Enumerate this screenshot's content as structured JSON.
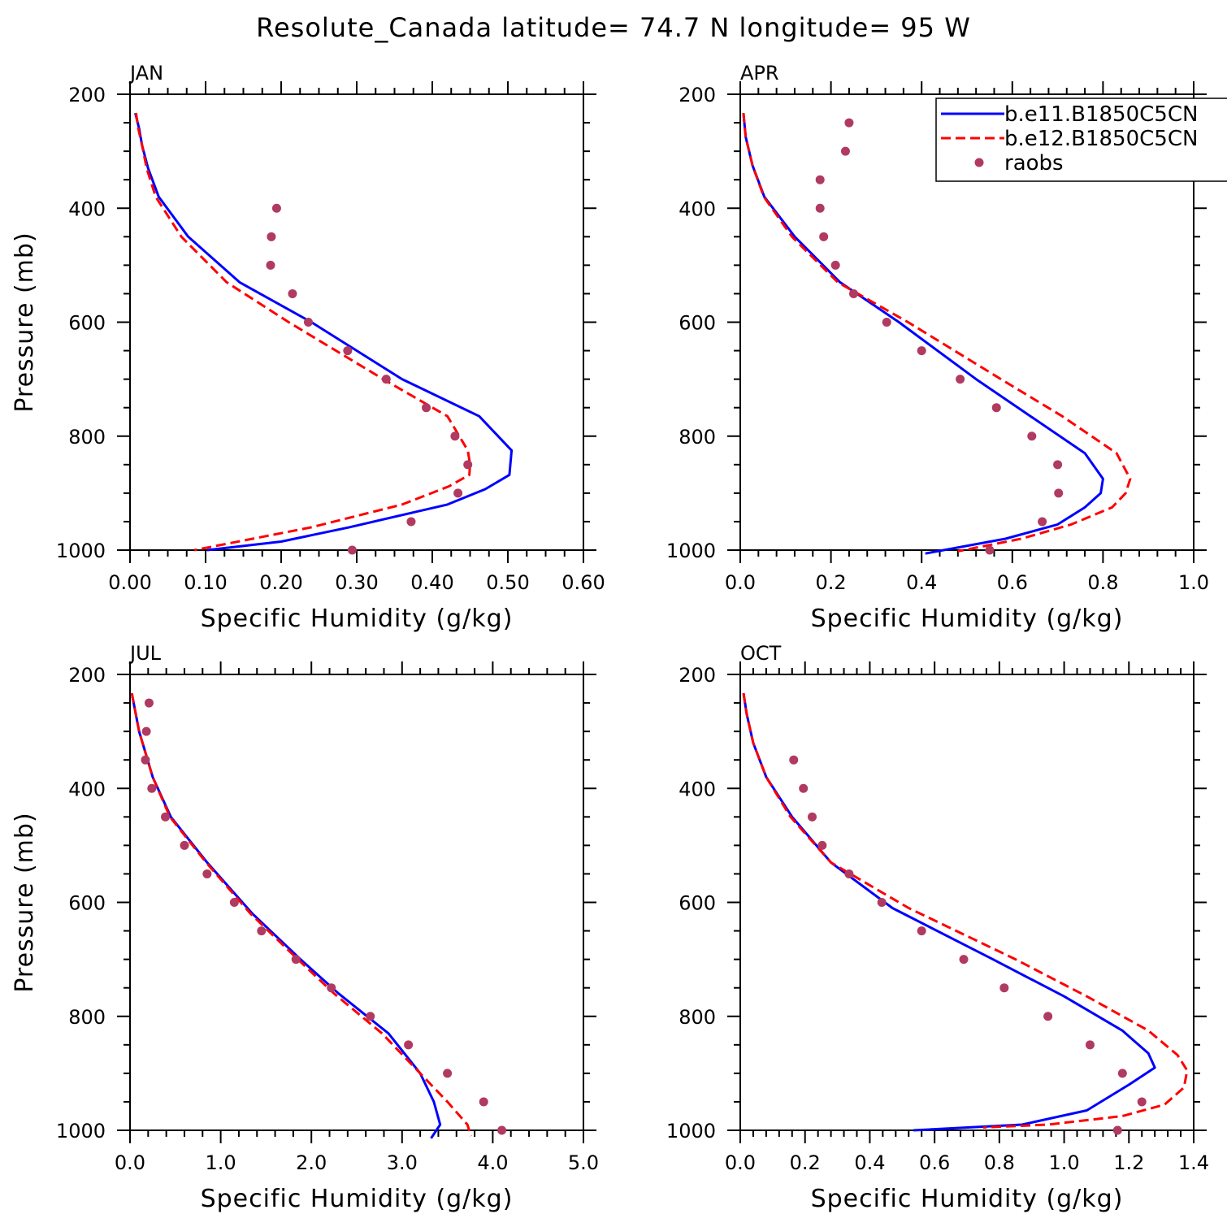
{
  "title": "Resolute_Canada  latitude= 74.7 N longitude= 95 W",
  "legend": [
    {
      "name": "b.e11.B1850C5CN",
      "style": "solid",
      "color": "#0000ff"
    },
    {
      "name": "b.e12.B1850C5CN",
      "style": "dashed",
      "color": "#ff0000"
    },
    {
      "name": "raobs",
      "style": "dot",
      "color": "#b03a60"
    }
  ],
  "chart_data": [
    {
      "type": "line",
      "panel": "JAN",
      "xlabel": "Specific Humidity (g/kg)",
      "ylabel": "Pressure (mb)",
      "xlim": [
        0,
        0.6
      ],
      "ylim": [
        1000,
        200
      ],
      "xticks": [
        "0.00",
        "0.10",
        "0.20",
        "0.30",
        "0.40",
        "0.50",
        "0.60"
      ],
      "yticks": [
        "200",
        "400",
        "600",
        "800",
        "1000"
      ],
      "series": [
        {
          "name": "b.e11.B1850C5CN",
          "pressure": [
            233,
            260,
            290,
            330,
            380,
            450,
            530,
            600,
            700,
            765,
            825,
            868,
            893,
            920,
            960,
            985,
            1000
          ],
          "values": [
            0.007,
            0.012,
            0.016,
            0.024,
            0.038,
            0.077,
            0.145,
            0.24,
            0.36,
            0.462,
            0.505,
            0.502,
            0.47,
            0.42,
            0.29,
            0.2,
            0.102
          ]
        },
        {
          "name": "b.e12.B1850C5CN",
          "pressure": [
            233,
            260,
            290,
            330,
            380,
            450,
            530,
            600,
            700,
            765,
            825,
            850,
            868,
            888,
            920,
            960,
            1000
          ],
          "values": [
            0.008,
            0.011,
            0.016,
            0.022,
            0.034,
            0.068,
            0.128,
            0.21,
            0.335,
            0.42,
            0.447,
            0.45,
            0.449,
            0.422,
            0.36,
            0.24,
            0.085
          ]
        },
        {
          "name": "raobs",
          "pressure": [
            400,
            450,
            500,
            550,
            600,
            650,
            700,
            750,
            800,
            850,
            900,
            950,
            1000
          ],
          "values": [
            0.194,
            0.187,
            0.186,
            0.215,
            0.236,
            0.288,
            0.339,
            0.392,
            0.43,
            0.447,
            0.434,
            0.372,
            0.294
          ]
        }
      ]
    },
    {
      "type": "line",
      "panel": "APR",
      "xlabel": "Specific Humidity (g/kg)",
      "ylabel": "",
      "xlim": [
        0,
        1.0
      ],
      "ylim": [
        1000,
        200
      ],
      "xticks": [
        "0.0",
        "0.2",
        "0.4",
        "0.6",
        "0.8",
        "1.0"
      ],
      "yticks": [
        "200",
        "400",
        "600",
        "800",
        "1000"
      ],
      "series": [
        {
          "name": "b.e11.B1850C5CN",
          "pressure": [
            233,
            275,
            325,
            380,
            450,
            530,
            600,
            700,
            765,
            830,
            875,
            900,
            925,
            955,
            980,
            1006
          ],
          "values": [
            0.007,
            0.012,
            0.027,
            0.053,
            0.12,
            0.22,
            0.35,
            0.52,
            0.64,
            0.76,
            0.8,
            0.795,
            0.76,
            0.7,
            0.585,
            0.408
          ]
        },
        {
          "name": "b.e12.B1850C5CN",
          "pressure": [
            233,
            275,
            325,
            380,
            450,
            530,
            600,
            700,
            765,
            830,
            875,
            900,
            925,
            955,
            980,
            1002
          ],
          "values": [
            0.007,
            0.012,
            0.027,
            0.052,
            0.114,
            0.215,
            0.37,
            0.575,
            0.71,
            0.83,
            0.86,
            0.85,
            0.82,
            0.73,
            0.62,
            0.48
          ]
        },
        {
          "name": "raobs",
          "pressure": [
            250,
            300,
            350,
            400,
            450,
            500,
            550,
            600,
            650,
            700,
            750,
            800,
            850,
            900,
            950,
            1000
          ],
          "values": [
            0.24,
            0.232,
            0.176,
            0.176,
            0.184,
            0.21,
            0.25,
            0.323,
            0.4,
            0.485,
            0.565,
            0.643,
            0.7,
            0.702,
            0.666,
            0.55
          ]
        }
      ]
    },
    {
      "type": "line",
      "panel": "JUL",
      "xlabel": "Specific Humidity (g/kg)",
      "ylabel": "Pressure (mb)",
      "xlim": [
        0,
        5.0
      ],
      "ylim": [
        1000,
        200
      ],
      "xticks": [
        "0.0",
        "1.0",
        "2.0",
        "3.0",
        "4.0",
        "5.0"
      ],
      "yticks": [
        "200",
        "400",
        "600",
        "800",
        "1000"
      ],
      "series": [
        {
          "name": "b.e11.B1850C5CN",
          "pressure": [
            233,
            300,
            380,
            450,
            530,
            620,
            700,
            760,
            830,
            900,
            950,
            990,
            1014
          ],
          "values": [
            0.02,
            0.1,
            0.25,
            0.45,
            0.85,
            1.35,
            1.88,
            2.3,
            2.85,
            3.2,
            3.35,
            3.42,
            3.32
          ]
        },
        {
          "name": "b.e12.B1850C5CN",
          "pressure": [
            233,
            300,
            380,
            450,
            530,
            620,
            700,
            760,
            830,
            900,
            950,
            990,
            1010
          ],
          "values": [
            0.02,
            0.1,
            0.25,
            0.44,
            0.84,
            1.33,
            1.85,
            2.25,
            2.78,
            3.2,
            3.5,
            3.72,
            3.76
          ]
        },
        {
          "name": "raobs",
          "pressure": [
            250,
            300,
            350,
            400,
            450,
            500,
            550,
            600,
            650,
            700,
            750,
            800,
            850,
            900,
            950,
            1000
          ],
          "values": [
            0.21,
            0.18,
            0.17,
            0.24,
            0.39,
            0.6,
            0.85,
            1.15,
            1.45,
            1.83,
            2.22,
            2.65,
            3.07,
            3.5,
            3.9,
            4.1
          ]
        }
      ]
    },
    {
      "type": "line",
      "panel": "OCT",
      "xlabel": "Specific Humidity (g/kg)",
      "ylabel": "",
      "xlim": [
        0,
        1.4
      ],
      "ylim": [
        1000,
        200
      ],
      "xticks": [
        "0.0",
        "0.2",
        "0.4",
        "0.6",
        "0.8",
        "1.0",
        "1.2",
        "1.4"
      ],
      "yticks": [
        "200",
        "400",
        "600",
        "800",
        "1000"
      ],
      "series": [
        {
          "name": "b.e11.B1850C5CN",
          "pressure": [
            233,
            270,
            320,
            380,
            450,
            530,
            610,
            700,
            765,
            825,
            865,
            890,
            920,
            965,
            990,
            1000
          ],
          "values": [
            0.01,
            0.02,
            0.04,
            0.08,
            0.16,
            0.28,
            0.47,
            0.78,
            1.0,
            1.18,
            1.26,
            1.28,
            1.2,
            1.07,
            0.87,
            0.535
          ]
        },
        {
          "name": "b.e12.B1850C5CN",
          "pressure": [
            233,
            270,
            320,
            380,
            450,
            530,
            610,
            700,
            765,
            825,
            868,
            895,
            925,
            955,
            975,
            990,
            995
          ],
          "values": [
            0.01,
            0.02,
            0.04,
            0.08,
            0.155,
            0.28,
            0.52,
            0.85,
            1.07,
            1.26,
            1.35,
            1.38,
            1.37,
            1.31,
            1.18,
            0.95,
            0.75
          ]
        },
        {
          "name": "raobs",
          "pressure": [
            350,
            400,
            450,
            500,
            550,
            600,
            650,
            700,
            750,
            800,
            850,
            900,
            950,
            1000
          ],
          "values": [
            0.165,
            0.195,
            0.222,
            0.253,
            0.336,
            0.437,
            0.56,
            0.69,
            0.815,
            0.95,
            1.08,
            1.18,
            1.24,
            1.165
          ]
        }
      ]
    }
  ]
}
